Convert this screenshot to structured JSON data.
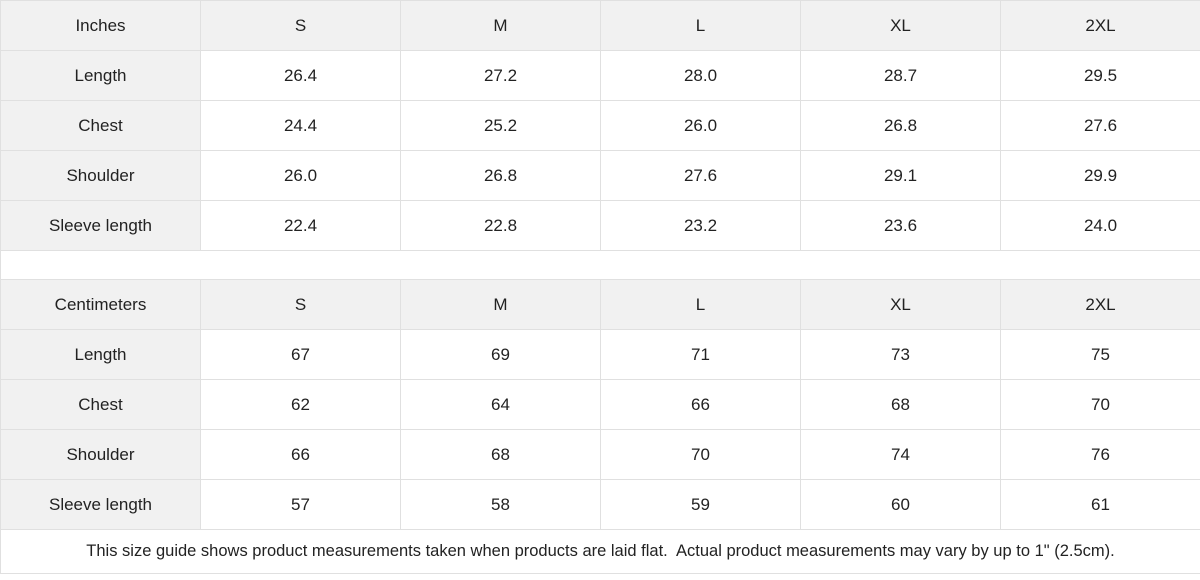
{
  "chart_data": [
    {
      "type": "table",
      "unit": "Inches",
      "columns": [
        "S",
        "M",
        "L",
        "XL",
        "2XL"
      ],
      "rows": [
        {
          "label": "Length",
          "values": [
            "26.4",
            "27.2",
            "28.0",
            "28.7",
            "29.5"
          ]
        },
        {
          "label": "Chest",
          "values": [
            "24.4",
            "25.2",
            "26.0",
            "26.8",
            "27.6"
          ]
        },
        {
          "label": "Shoulder",
          "values": [
            "26.0",
            "26.8",
            "27.6",
            "29.1",
            "29.9"
          ]
        },
        {
          "label": "Sleeve length",
          "values": [
            "22.4",
            "22.8",
            "23.2",
            "23.6",
            "24.0"
          ]
        }
      ]
    },
    {
      "type": "table",
      "unit": "Centimeters",
      "columns": [
        "S",
        "M",
        "L",
        "XL",
        "2XL"
      ],
      "rows": [
        {
          "label": "Length",
          "values": [
            "67",
            "69",
            "71",
            "73",
            "75"
          ]
        },
        {
          "label": "Chest",
          "values": [
            "62",
            "64",
            "66",
            "68",
            "70"
          ]
        },
        {
          "label": "Shoulder",
          "values": [
            "66",
            "68",
            "70",
            "74",
            "76"
          ]
        },
        {
          "label": "Sleeve length",
          "values": [
            "57",
            "58",
            "59",
            "60",
            "61"
          ]
        }
      ]
    }
  ],
  "footer_note": "This size guide shows product measurements taken when products are laid flat.  Actual product measurements may vary by up to 1\" (2.5cm).",
  "colors": {
    "header_cell_bg": "#f1f1f1",
    "body_cell_bg": "#ffffff",
    "border": "#e0e0e0",
    "text": "#222222"
  }
}
